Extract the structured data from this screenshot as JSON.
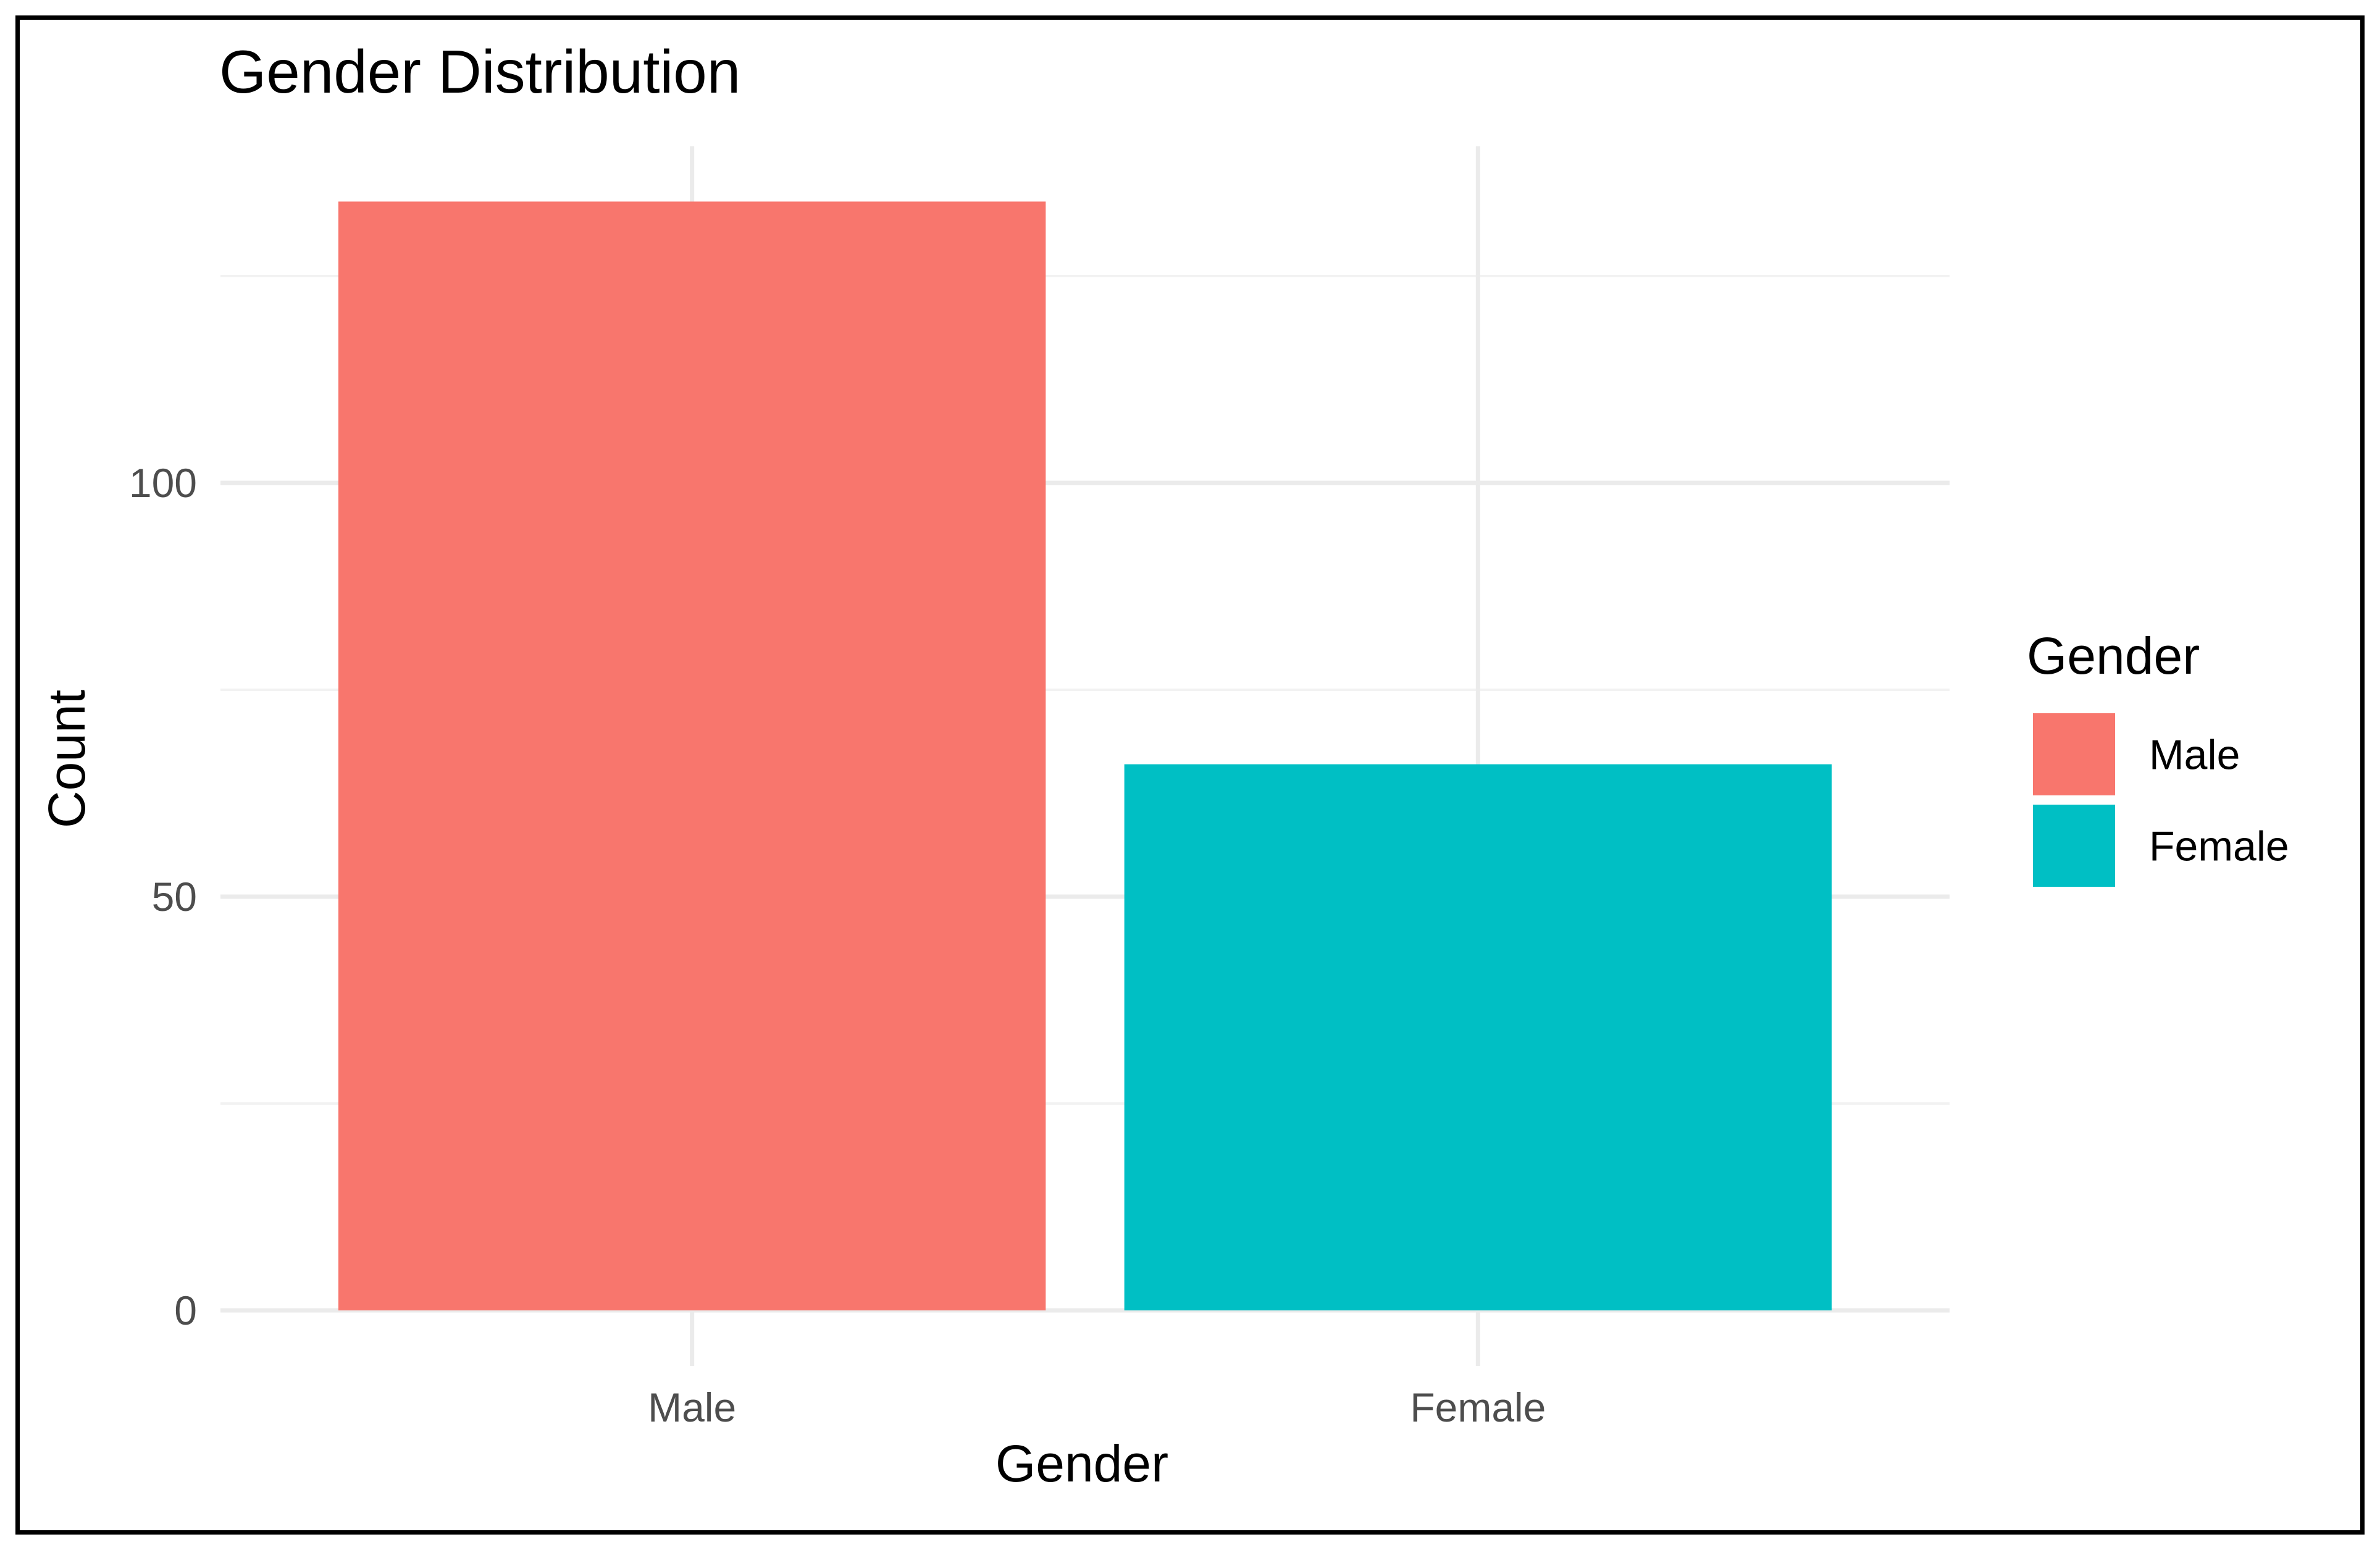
{
  "chart_data": {
    "type": "bar",
    "title": "Gender Distribution",
    "xlabel": "Gender",
    "ylabel": "Count",
    "categories": [
      "Male",
      "Female"
    ],
    "values": [
      134,
      66
    ],
    "colors": [
      "#F8766D",
      "#00BFC4"
    ],
    "ylim": [
      0,
      141
    ],
    "yticks": [
      0,
      50,
      100
    ],
    "yticks_labels": [
      "0",
      "50",
      "100"
    ],
    "grid": true,
    "legend": {
      "title": "Gender",
      "placement": "right",
      "entries": [
        {
          "label": "Male",
          "color": "#F8766D"
        },
        {
          "label": "Female",
          "color": "#00BFC4"
        }
      ]
    }
  }
}
